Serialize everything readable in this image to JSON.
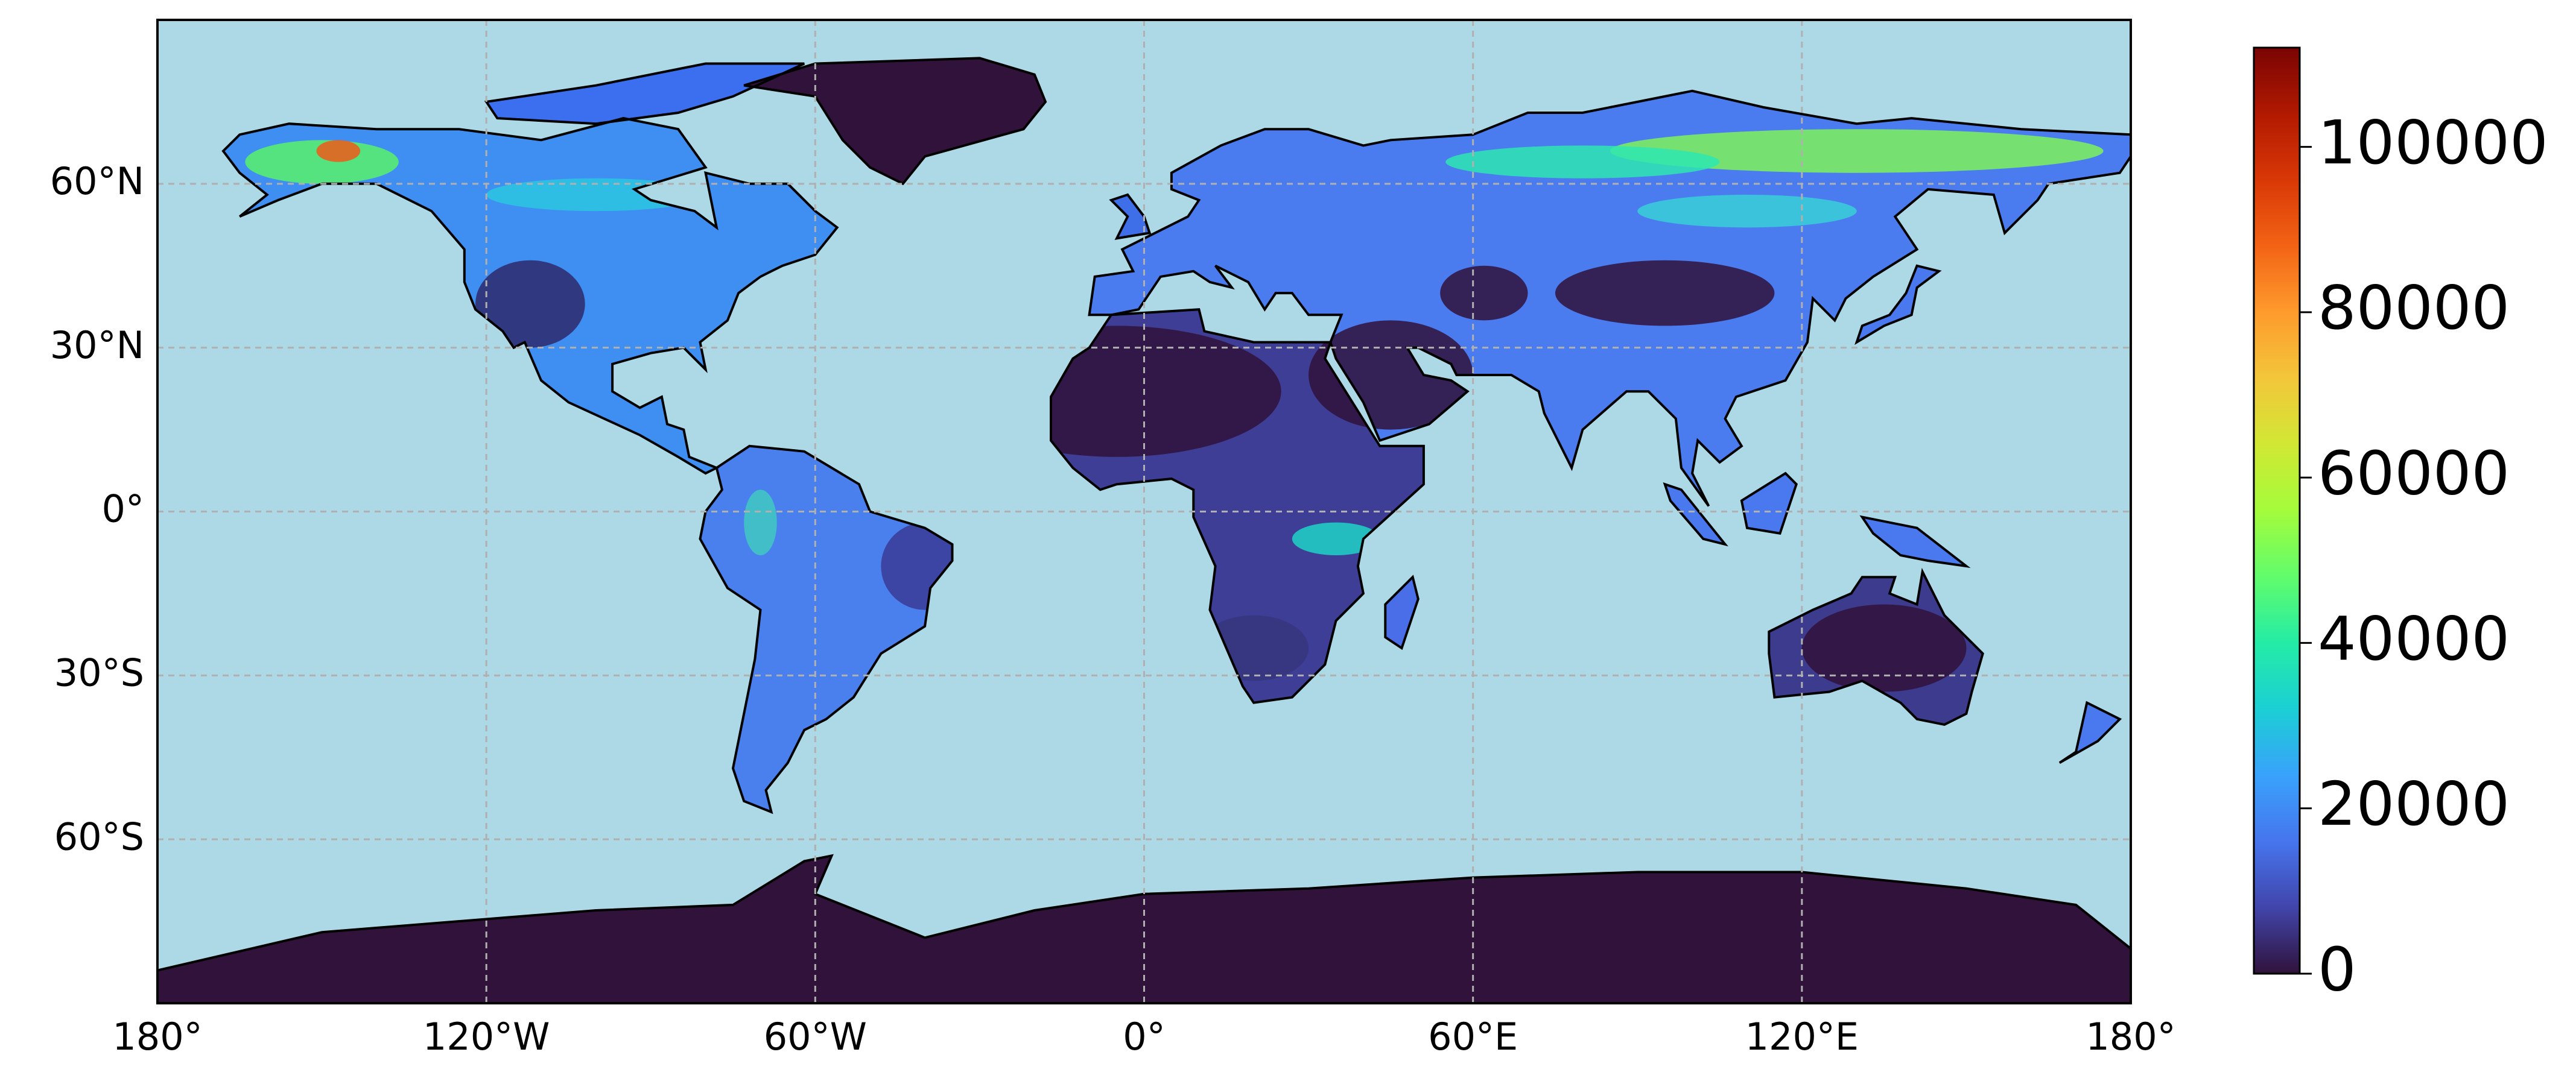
{
  "chart_data": {
    "type": "map",
    "xlim": [
      -180,
      180
    ],
    "ylim": [
      -90,
      90
    ],
    "xticks": [
      {
        "value": -180,
        "label": "180°"
      },
      {
        "value": -120,
        "label": "120°W"
      },
      {
        "value": -60,
        "label": "60°W"
      },
      {
        "value": 0,
        "label": "0°"
      },
      {
        "value": 60,
        "label": "60°E"
      },
      {
        "value": 120,
        "label": "120°E"
      },
      {
        "value": 180,
        "label": "180°"
      }
    ],
    "yticks": [
      {
        "value": 60,
        "label": "60°N"
      },
      {
        "value": 30,
        "label": "30°N"
      },
      {
        "value": 0,
        "label": "0°"
      },
      {
        "value": -30,
        "label": "30°S"
      },
      {
        "value": -60,
        "label": "60°S"
      }
    ],
    "grid": true,
    "ocean_color": "#add8e6",
    "colorbar": {
      "colormap": "turbo",
      "lim": [
        0,
        112000
      ],
      "ticks": [
        0,
        20000,
        40000,
        60000,
        80000,
        100000
      ]
    }
  }
}
